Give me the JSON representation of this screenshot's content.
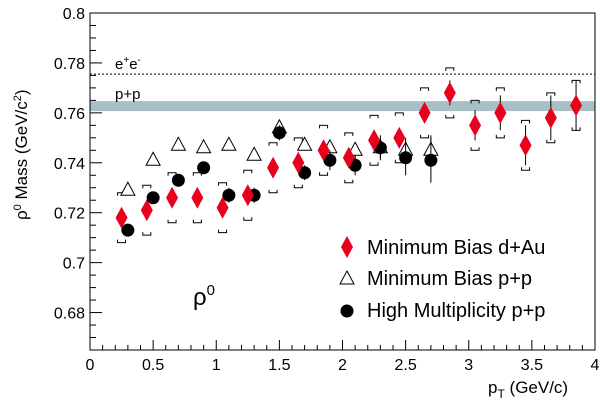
{
  "chart_data": {
    "type": "scatter",
    "xlabel_main": "p",
    "xlabel_sub": "T",
    "xlabel_unit": " (GeV/c)",
    "ylabel_pre": "ρ",
    "ylabel_sup": "0",
    "ylabel_mid": " Mass (GeV/c",
    "ylabel_sup2": "2",
    "ylabel_end": ")",
    "xlim": [
      0,
      4
    ],
    "ylim": [
      0.665,
      0.8
    ],
    "x_ticks": [
      0,
      0.5,
      1,
      1.5,
      2,
      2.5,
      3,
      3.5,
      4
    ],
    "x_tick_labels": [
      "0",
      "0.5",
      "1",
      "1.5",
      "2",
      "2.5",
      "3",
      "3.5",
      "4"
    ],
    "y_ticks": [
      0.68,
      0.7,
      0.72,
      0.74,
      0.76,
      0.78,
      0.8
    ],
    "y_tick_labels": [
      "0.68",
      "0.7",
      "0.72",
      "0.74",
      "0.76",
      "0.78",
      "0.8"
    ],
    "reference_lines": [
      {
        "label_pre": "e",
        "label_sup1": "+",
        "label_mid": "e",
        "label_sup2": "-",
        "y": 0.7755,
        "style": "dotted"
      },
      {
        "label": "p+p",
        "y_low": 0.7607,
        "y_high": 0.7647,
        "style": "band",
        "color": "#a7bfc5"
      }
    ],
    "big_label_pre": "ρ",
    "big_label_sup": "0",
    "series": [
      {
        "name": "Minimum Bias d+Au",
        "marker": "diamond",
        "color": "#e8001c",
        "points": [
          {
            "x": 0.25,
            "y": 0.718,
            "err": 0.002,
            "sys_low": 0.708,
            "sys_high": 0.728
          },
          {
            "x": 0.45,
            "y": 0.721,
            "err": 0.002,
            "sys_low": 0.711,
            "sys_high": 0.731
          },
          {
            "x": 0.65,
            "y": 0.726,
            "err": 0.002,
            "sys_low": 0.716,
            "sys_high": 0.736
          },
          {
            "x": 0.85,
            "y": 0.726,
            "err": 0.002,
            "sys_low": 0.716,
            "sys_high": 0.736
          },
          {
            "x": 1.05,
            "y": 0.722,
            "err": 0.002,
            "sys_low": 0.712,
            "sys_high": 0.732
          },
          {
            "x": 1.25,
            "y": 0.727,
            "err": 0.002,
            "sys_low": 0.717,
            "sys_high": 0.737
          },
          {
            "x": 1.45,
            "y": 0.738,
            "err": 0.002,
            "sys_low": 0.728,
            "sys_high": 0.748
          },
          {
            "x": 1.65,
            "y": 0.74,
            "err": 0.003,
            "sys_low": 0.73,
            "sys_high": 0.75
          },
          {
            "x": 1.85,
            "y": 0.745,
            "err": 0.003,
            "sys_low": 0.735,
            "sys_high": 0.755
          },
          {
            "x": 2.05,
            "y": 0.742,
            "err": 0.003,
            "sys_low": 0.732,
            "sys_high": 0.752
          },
          {
            "x": 2.25,
            "y": 0.749,
            "err": 0.003,
            "sys_low": 0.739,
            "sys_high": 0.759
          },
          {
            "x": 2.45,
            "y": 0.75,
            "err": 0.003,
            "sys_low": 0.74,
            "sys_high": 0.76
          },
          {
            "x": 2.65,
            "y": 0.76,
            "err": 0.004,
            "sys_low": 0.75,
            "sys_high": 0.77
          },
          {
            "x": 2.85,
            "y": 0.768,
            "err": 0.005,
            "sys_low": 0.758,
            "sys_high": 0.778
          },
          {
            "x": 3.05,
            "y": 0.755,
            "err": 0.006,
            "sys_low": 0.745,
            "sys_high": 0.765
          },
          {
            "x": 3.25,
            "y": 0.76,
            "err": 0.007,
            "sys_low": 0.75,
            "sys_high": 0.77
          },
          {
            "x": 3.45,
            "y": 0.747,
            "err": 0.008,
            "sys_low": 0.737,
            "sys_high": 0.757
          },
          {
            "x": 3.65,
            "y": 0.758,
            "err": 0.009,
            "sys_low": 0.748,
            "sys_high": 0.768
          },
          {
            "x": 3.85,
            "y": 0.763,
            "err": 0.01,
            "sys_low": 0.753,
            "sys_high": 0.773
          }
        ]
      },
      {
        "name": "Minimum Bias p+p",
        "marker": "open-triangle",
        "color": "#000000",
        "points": [
          {
            "x": 0.3,
            "y": 0.729,
            "err": 0.001
          },
          {
            "x": 0.5,
            "y": 0.741,
            "err": 0.001
          },
          {
            "x": 0.7,
            "y": 0.747,
            "err": 0.001
          },
          {
            "x": 0.9,
            "y": 0.746,
            "err": 0.001
          },
          {
            "x": 1.1,
            "y": 0.747,
            "err": 0.001
          },
          {
            "x": 1.3,
            "y": 0.743,
            "err": 0.002
          },
          {
            "x": 1.5,
            "y": 0.754,
            "err": 0.002
          },
          {
            "x": 1.7,
            "y": 0.747,
            "err": 0.002
          },
          {
            "x": 1.9,
            "y": 0.746,
            "err": 0.002
          },
          {
            "x": 2.1,
            "y": 0.745,
            "err": 0.003
          },
          {
            "x": 2.3,
            "y": 0.746,
            "err": 0.004
          },
          {
            "x": 2.5,
            "y": 0.745,
            "err": 0.005
          },
          {
            "x": 2.7,
            "y": 0.745,
            "err": 0.006
          }
        ]
      },
      {
        "name": "High Multiplicity p+p",
        "marker": "filled-circle",
        "color": "#000000",
        "points": [
          {
            "x": 0.3,
            "y": 0.713,
            "err": 0.002
          },
          {
            "x": 0.5,
            "y": 0.726,
            "err": 0.002
          },
          {
            "x": 0.7,
            "y": 0.733,
            "err": 0.002
          },
          {
            "x": 0.9,
            "y": 0.738,
            "err": 0.002
          },
          {
            "x": 1.1,
            "y": 0.727,
            "err": 0.003
          },
          {
            "x": 1.3,
            "y": 0.727,
            "err": 0.003
          },
          {
            "x": 1.5,
            "y": 0.752,
            "err": 0.003
          },
          {
            "x": 1.7,
            "y": 0.736,
            "err": 0.003
          },
          {
            "x": 1.9,
            "y": 0.741,
            "err": 0.004
          },
          {
            "x": 2.1,
            "y": 0.739,
            "err": 0.004
          },
          {
            "x": 2.3,
            "y": 0.746,
            "err": 0.005
          },
          {
            "x": 2.5,
            "y": 0.742,
            "err": 0.007
          },
          {
            "x": 2.7,
            "y": 0.741,
            "err": 0.009
          }
        ]
      }
    ],
    "legend_position": "bottom-right"
  }
}
